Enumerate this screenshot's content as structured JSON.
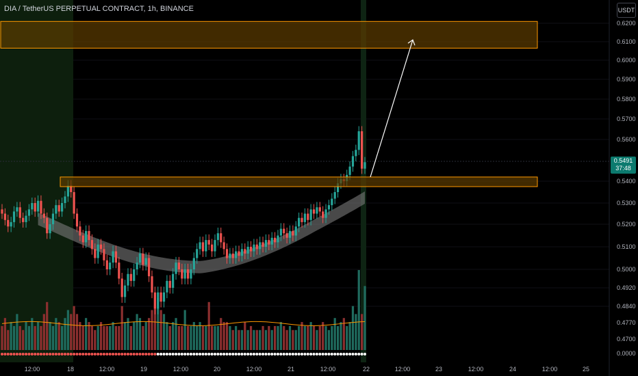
{
  "header": {
    "title": "DIA / TetherUS PERPETUAL CONTRACT, 1h, BINANCE",
    "currency_button": "USDT"
  },
  "price_axis": {
    "labels": [
      "0.6200",
      "0.6100",
      "0.6000",
      "0.5900",
      "0.5800",
      "0.5700",
      "0.5600",
      "0.5400",
      "0.5300",
      "0.5200",
      "0.5100",
      "0.5000",
      "0.4920",
      "0.4840",
      "0.4770",
      "0.4700",
      "0.0000"
    ],
    "current_price": "0.5491",
    "countdown": "37:48"
  },
  "time_axis": {
    "labels": [
      "12:00",
      "18",
      "12:00",
      "19",
      "12:00",
      "20",
      "12:00",
      "21",
      "12:00",
      "22",
      "12:00",
      "23",
      "12:00",
      "24",
      "12:00",
      "25"
    ]
  },
  "colors": {
    "up": "#26a69a",
    "down": "#ef5350",
    "zone_border": "#ff9800",
    "zone_fill": "#5c3c00",
    "ribbon": "#808080"
  },
  "chart_data": {
    "type": "candlestick",
    "title": "DIA / TetherUS PERPETUAL CONTRACT, 1h, BINANCE",
    "last_price": 0.5491,
    "y_range": [
      0.464,
      0.626
    ],
    "zones": [
      {
        "low": 0.6065,
        "high": 0.621,
        "extends_to": "24 12:00"
      },
      {
        "low": 0.5375,
        "high": 0.542,
        "extends_to": "24 12:00"
      }
    ],
    "projection_arrow": {
      "from_price": 0.542,
      "to_price": 0.611
    },
    "candles": [
      [
        0.527,
        0.525
      ],
      [
        0.525,
        0.522
      ],
      [
        0.522,
        0.519
      ],
      [
        0.519,
        0.521
      ],
      [
        0.521,
        0.526
      ],
      [
        0.526,
        0.528
      ],
      [
        0.528,
        0.523
      ],
      [
        0.523,
        0.521
      ],
      [
        0.521,
        0.524
      ],
      [
        0.524,
        0.527
      ],
      [
        0.527,
        0.53
      ],
      [
        0.53,
        0.526
      ],
      [
        0.526,
        0.531
      ],
      [
        0.531,
        0.525
      ],
      [
        0.525,
        0.523
      ],
      [
        0.523,
        0.516
      ],
      [
        0.516,
        0.52
      ],
      [
        0.52,
        0.525
      ],
      [
        0.525,
        0.529
      ],
      [
        0.529,
        0.526
      ],
      [
        0.526,
        0.53
      ],
      [
        0.53,
        0.533
      ],
      [
        0.533,
        0.538
      ],
      [
        0.538,
        0.535
      ],
      [
        0.535,
        0.525
      ],
      [
        0.525,
        0.519
      ],
      [
        0.519,
        0.515
      ],
      [
        0.515,
        0.512
      ],
      [
        0.512,
        0.517
      ],
      [
        0.517,
        0.513
      ],
      [
        0.513,
        0.509
      ],
      [
        0.509,
        0.505
      ],
      [
        0.505,
        0.511
      ],
      [
        0.511,
        0.509
      ],
      [
        0.509,
        0.504
      ],
      [
        0.504,
        0.5
      ],
      [
        0.5,
        0.503
      ],
      [
        0.503,
        0.508
      ],
      [
        0.508,
        0.503
      ],
      [
        0.503,
        0.496
      ],
      [
        0.496,
        0.488
      ],
      [
        0.488,
        0.493
      ],
      [
        0.493,
        0.498
      ],
      [
        0.498,
        0.495
      ],
      [
        0.495,
        0.5
      ],
      [
        0.5,
        0.503
      ],
      [
        0.503,
        0.507
      ],
      [
        0.507,
        0.502
      ],
      [
        0.502,
        0.505
      ],
      [
        0.505,
        0.497
      ],
      [
        0.497,
        0.49
      ],
      [
        0.49,
        0.483
      ],
      [
        0.483,
        0.49
      ],
      [
        0.49,
        0.486
      ],
      [
        0.486,
        0.49
      ],
      [
        0.49,
        0.495
      ],
      [
        0.495,
        0.492
      ],
      [
        0.492,
        0.498
      ],
      [
        0.498,
        0.503
      ],
      [
        0.503,
        0.5
      ],
      [
        0.5,
        0.496
      ],
      [
        0.496,
        0.5
      ],
      [
        0.5,
        0.496
      ],
      [
        0.496,
        0.5
      ],
      [
        0.5,
        0.505
      ],
      [
        0.505,
        0.509
      ],
      [
        0.509,
        0.512
      ],
      [
        0.512,
        0.508
      ],
      [
        0.508,
        0.513
      ],
      [
        0.513,
        0.511
      ],
      [
        0.511,
        0.508
      ],
      [
        0.508,
        0.513
      ],
      [
        0.513,
        0.516
      ],
      [
        0.516,
        0.512
      ],
      [
        0.512,
        0.509
      ],
      [
        0.509,
        0.505
      ],
      [
        0.505,
        0.507
      ],
      [
        0.507,
        0.505
      ],
      [
        0.505,
        0.508
      ],
      [
        0.508,
        0.506
      ],
      [
        0.506,
        0.509
      ],
      [
        0.509,
        0.507
      ],
      [
        0.507,
        0.51
      ],
      [
        0.51,
        0.508
      ],
      [
        0.508,
        0.511
      ],
      [
        0.511,
        0.509
      ],
      [
        0.509,
        0.512
      ],
      [
        0.512,
        0.51
      ],
      [
        0.51,
        0.513
      ],
      [
        0.513,
        0.511
      ],
      [
        0.511,
        0.514
      ],
      [
        0.514,
        0.512
      ],
      [
        0.512,
        0.515
      ],
      [
        0.515,
        0.518
      ],
      [
        0.518,
        0.516
      ],
      [
        0.516,
        0.514
      ],
      [
        0.514,
        0.517
      ],
      [
        0.517,
        0.515
      ],
      [
        0.515,
        0.519
      ],
      [
        0.519,
        0.523
      ],
      [
        0.523,
        0.521
      ],
      [
        0.521,
        0.525
      ],
      [
        0.525,
        0.522
      ],
      [
        0.522,
        0.527
      ],
      [
        0.527,
        0.525
      ],
      [
        0.525,
        0.528
      ],
      [
        0.528,
        0.526
      ],
      [
        0.526,
        0.523
      ],
      [
        0.523,
        0.527
      ],
      [
        0.527,
        0.529
      ],
      [
        0.529,
        0.532
      ],
      [
        0.532,
        0.535
      ],
      [
        0.535,
        0.539
      ],
      [
        0.539,
        0.541
      ],
      [
        0.541,
        0.54
      ],
      [
        0.54,
        0.543
      ],
      [
        0.543,
        0.547
      ],
      [
        0.547,
        0.552
      ],
      [
        0.552,
        0.555
      ],
      [
        0.555,
        0.564
      ],
      [
        0.564,
        0.546
      ],
      [
        0.546,
        0.5491
      ]
    ],
    "volumes": [
      0.3,
      0.4,
      0.25,
      0.35,
      0.3,
      0.45,
      0.3,
      0.25,
      0.35,
      0.3,
      0.4,
      0.3,
      0.35,
      0.3,
      0.45,
      0.6,
      0.35,
      0.3,
      0.4,
      0.35,
      0.3,
      0.4,
      0.5,
      0.45,
      0.55,
      0.45,
      0.35,
      0.3,
      0.4,
      0.35,
      0.3,
      0.25,
      0.3,
      0.35,
      0.3,
      0.3,
      0.3,
      0.35,
      0.3,
      0.3,
      0.55,
      0.35,
      0.4,
      0.3,
      0.35,
      0.45,
      0.4,
      0.3,
      0.35,
      0.4,
      0.5,
      0.7,
      0.65,
      0.5,
      0.45,
      0.35,
      0.3,
      0.35,
      0.4,
      0.3,
      0.3,
      0.5,
      0.3,
      0.3,
      0.35,
      0.3,
      0.35,
      0.3,
      0.3,
      0.6,
      0.3,
      0.3,
      0.3,
      0.4,
      0.35,
      0.35,
      0.3,
      0.25,
      0.3,
      0.25,
      0.25,
      0.35,
      0.25,
      0.3,
      0.25,
      0.25,
      0.25,
      0.3,
      0.25,
      0.3,
      0.25,
      0.3,
      0.3,
      0.35,
      0.3,
      0.25,
      0.3,
      0.25,
      0.25,
      0.3,
      0.35,
      0.3,
      0.3,
      0.35,
      0.3,
      0.25,
      0.3,
      0.35,
      0.3,
      0.25,
      0.3,
      0.4,
      0.3,
      0.35,
      0.4,
      0.3,
      0.35,
      0.55,
      0.45,
      1.0,
      0.45,
      0.8
    ]
  }
}
